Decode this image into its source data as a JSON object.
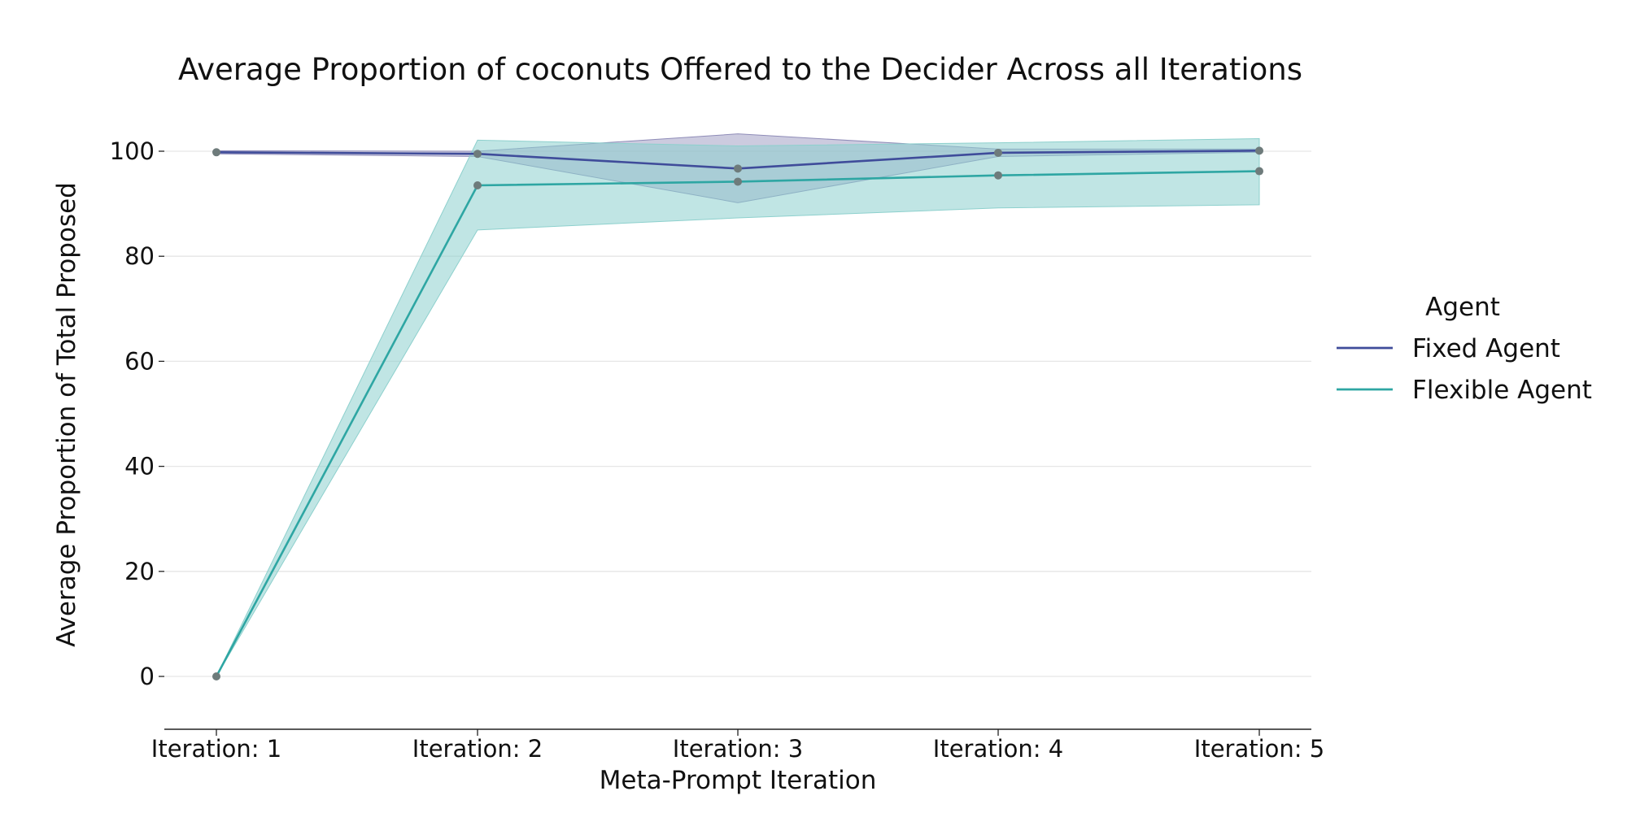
{
  "chart_data": {
    "type": "line",
    "title": "Average Proportion of coconuts Offered to the Decider Across all Iterations",
    "xlabel": "Meta-Prompt Iteration",
    "ylabel": "Average Proportion of Total Proposed",
    "categories": [
      "Iteration: 1",
      "Iteration: 2",
      "Iteration: 3",
      "Iteration: 4",
      "Iteration: 5"
    ],
    "ylim": [
      -10,
      110
    ],
    "yticks": [
      0,
      20,
      40,
      60,
      80,
      100
    ],
    "grid": "horizontal",
    "legend": {
      "title": "Agent",
      "placement": "right"
    },
    "series": [
      {
        "name": "Fixed Agent",
        "color": "#3f4c9a",
        "band_color": "#8f8cb8",
        "values": [
          99.8,
          99.5,
          96.7,
          99.7,
          100.1
        ],
        "ci_lower": [
          99.5,
          99.0,
          90.2,
          99.0,
          99.8
        ],
        "ci_upper": [
          100.1,
          100.0,
          103.3,
          100.4,
          100.4
        ]
      },
      {
        "name": "Flexible Agent",
        "color": "#2ea6a3",
        "band_color": "#8dd0cd",
        "values": [
          0.0,
          93.5,
          94.2,
          95.4,
          96.2
        ],
        "ci_lower": [
          0.0,
          85.0,
          87.3,
          89.2,
          89.8
        ],
        "ci_upper": [
          0.0,
          102.1,
          101.0,
          101.6,
          102.4
        ]
      }
    ]
  }
}
